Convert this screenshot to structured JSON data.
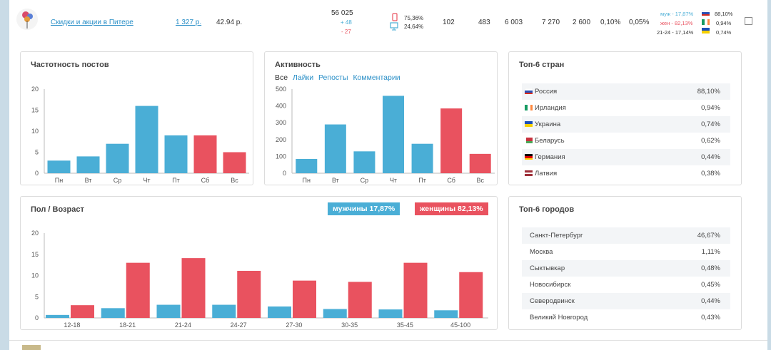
{
  "colors": {
    "blue": "#4aaed6",
    "red": "#e9525f",
    "link": "#2a8fc7"
  },
  "row": {
    "avatar_alt": "group avatar",
    "name": "Скидки и акции в Питере",
    "price": "1 327 р.",
    "cpm": "42.94 р.",
    "members": "56 025",
    "plus": "+ 48",
    "minus": "- 27",
    "mobile": "75,36%",
    "desktop": "24,64%",
    "stats": [
      "102",
      "483",
      "6 003",
      "7 270",
      "2 600",
      "0,10%",
      "0,05%"
    ],
    "gender_male": "муж - 17,87%",
    "gender_female": "жен - 82,13%",
    "age": "21-24 - 17,14%",
    "country_pcts": [
      "88,10%",
      "0,94%",
      "0,74%"
    ]
  },
  "post_freq": {
    "title": "Частотность постов",
    "chart_data": {
      "type": "bar",
      "categories": [
        "Пн",
        "Вт",
        "Ср",
        "Чт",
        "Пт",
        "Сб",
        "Вс"
      ],
      "values": [
        3,
        4,
        7,
        16,
        9,
        9,
        5
      ],
      "ylim": [
        0,
        20
      ],
      "yticks": [
        "0",
        "5",
        "10",
        "15",
        "20"
      ],
      "colors": [
        "blue",
        "blue",
        "blue",
        "blue",
        "blue",
        "red",
        "red"
      ]
    }
  },
  "activity": {
    "title": "Активность",
    "tabs": [
      "Все",
      "Лайки",
      "Репосты",
      "Комментарии"
    ],
    "chart_data": {
      "type": "bar",
      "categories": [
        "Пн",
        "Вт",
        "Ср",
        "Чт",
        "Пт",
        "Сб",
        "Вс"
      ],
      "values": [
        85,
        290,
        130,
        460,
        175,
        385,
        115
      ],
      "ylim": [
        0,
        500
      ],
      "yticks": [
        "0",
        "100",
        "200",
        "300",
        "400",
        "500"
      ],
      "colors": [
        "blue",
        "blue",
        "blue",
        "blue",
        "blue",
        "red",
        "red"
      ]
    }
  },
  "countries": {
    "title": "Топ-6 стран",
    "items": [
      {
        "name": "Россия",
        "value": "88,10%"
      },
      {
        "name": "Ирландия",
        "value": "0,94%"
      },
      {
        "name": "Украина",
        "value": "0,74%"
      },
      {
        "name": "Беларусь",
        "value": "0,62%"
      },
      {
        "name": "Германия",
        "value": "0,44%"
      },
      {
        "name": "Латвия",
        "value": "0,38%"
      }
    ]
  },
  "gender_age": {
    "title": "Пол / Возраст",
    "male_tag": "мужчины 17,87%",
    "female_tag": "женщины 82,13%",
    "chart_data": {
      "type": "bar",
      "categories": [
        "12-18",
        "18-21",
        "21-24",
        "24-27",
        "27-30",
        "30-35",
        "35-45",
        "45-100"
      ],
      "series": [
        {
          "name": "мужчины",
          "values": [
            0.7,
            2.3,
            3.1,
            3.1,
            2.7,
            2.1,
            2.0,
            1.8
          ]
        },
        {
          "name": "женщины",
          "values": [
            3.0,
            13.0,
            14.1,
            11.1,
            8.8,
            8.5,
            13.0,
            10.8
          ]
        }
      ],
      "ylim": [
        0,
        20
      ],
      "yticks": [
        "0",
        "5",
        "10",
        "15",
        "20"
      ]
    }
  },
  "cities": {
    "title": "Топ-6 городов",
    "items": [
      {
        "name": "Санкт-Петербург",
        "value": "46,67%"
      },
      {
        "name": "Москва",
        "value": "1,11%"
      },
      {
        "name": "Сыктывкар",
        "value": "0,48%"
      },
      {
        "name": "Новосибирск",
        "value": "0,45%"
      },
      {
        "name": "Северодвинск",
        "value": "0,44%"
      },
      {
        "name": "Великий Новгород",
        "value": "0,43%"
      }
    ]
  }
}
